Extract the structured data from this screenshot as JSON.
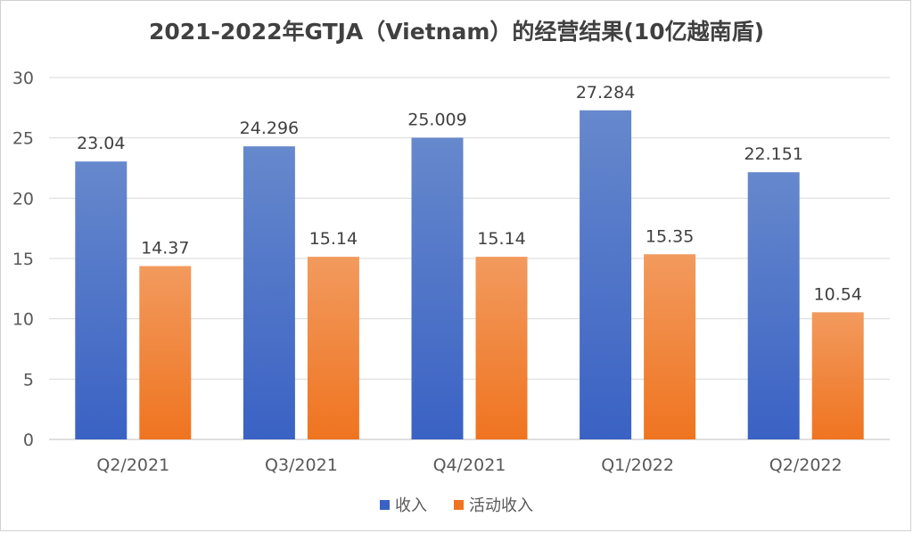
{
  "chart_data": {
    "type": "bar",
    "title": "2021-2022年GTJA（Vietnam）的经营结果(10亿越南盾)",
    "categories": [
      "Q2/2021",
      "Q3/2021",
      "Q4/2021",
      "Q1/2022",
      "Q2/2022"
    ],
    "series": [
      {
        "name": "收入",
        "values": [
          23.04,
          24.296,
          25.009,
          27.284,
          22.151
        ],
        "labels": [
          "23.04",
          "24.296",
          "25.009",
          "27.284",
          "22.151"
        ],
        "color_top": "#6688cc",
        "color_bottom": "#3a62c4"
      },
      {
        "name": "活动收入",
        "values": [
          14.37,
          15.14,
          15.14,
          15.35,
          10.54
        ],
        "labels": [
          "14.37",
          "15.14",
          "15.14",
          "15.35",
          "10.54"
        ],
        "color_top": "#f29a5e",
        "color_bottom": "#ef7420"
      }
    ],
    "ylim": [
      0,
      30
    ],
    "yticks": [
      0,
      5,
      10,
      15,
      20,
      25,
      30
    ],
    "grid": true,
    "legend_position": "bottom"
  }
}
